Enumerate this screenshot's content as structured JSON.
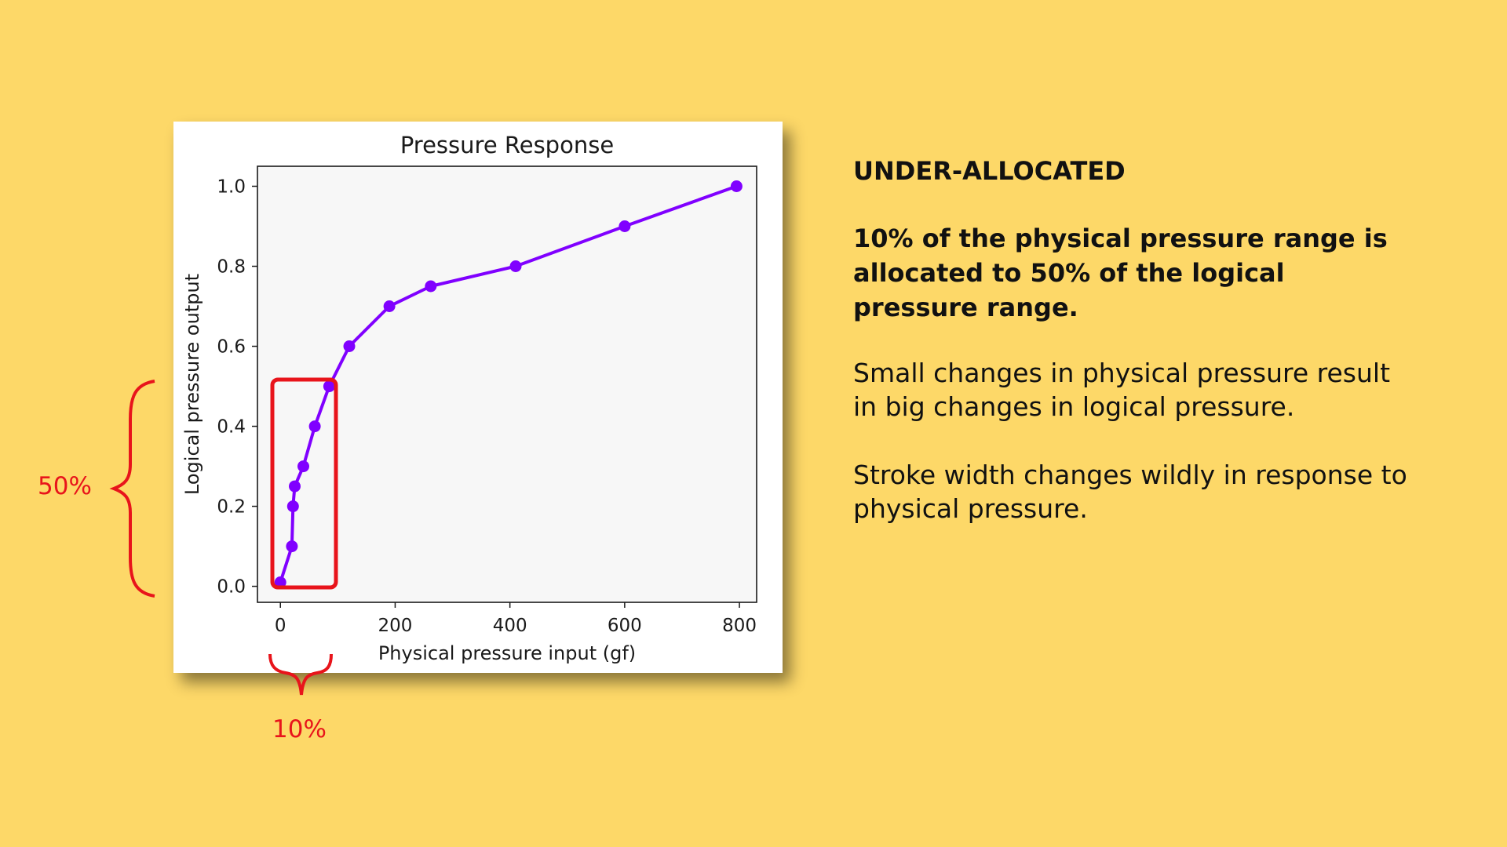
{
  "chart_data": {
    "type": "line",
    "title": "Pressure Response",
    "xlabel": "Physical pressure input (gf)",
    "ylabel": "Logical pressure output",
    "xlim": [
      -40,
      830
    ],
    "ylim": [
      -0.04,
      1.05
    ],
    "xticks": [
      0,
      200,
      400,
      600,
      800
    ],
    "xtick_labels": [
      "0",
      "200",
      "400",
      "600",
      "800"
    ],
    "yticks": [
      0.0,
      0.2,
      0.4,
      0.6,
      0.8,
      1.0
    ],
    "ytick_labels": [
      "0.0",
      "0.2",
      "0.4",
      "0.6",
      "0.8",
      "1.0"
    ],
    "grid": false,
    "series": [
      {
        "color": "#8000FF",
        "marker": "circle",
        "x": [
          0,
          20,
          22,
          25,
          40,
          60,
          85,
          120,
          190,
          262,
          410,
          600,
          795
        ],
        "y": [
          0.01,
          0.1,
          0.2,
          0.25,
          0.3,
          0.4,
          0.5,
          0.6,
          0.7,
          0.75,
          0.8,
          0.9,
          1.0
        ]
      }
    ]
  },
  "annotations": {
    "vertical_label": "50%",
    "horizontal_label": "10%",
    "color": "#E8141B"
  },
  "text_panel": {
    "heading": "UNDER-ALLOCATED",
    "bold_paragraph": "10% of the physical pressure range is allocated to 50% of the logical pressure range.",
    "paragraph1": "Small changes in physical pressure result in big changes in logical pressure.",
    "paragraph2": "Stroke width changes wildly in response to physical pressure."
  },
  "colors": {
    "background": "#FDD868",
    "plot_background": "#F7F7F7",
    "line": "#8000FF",
    "annotation": "#E8141B"
  }
}
